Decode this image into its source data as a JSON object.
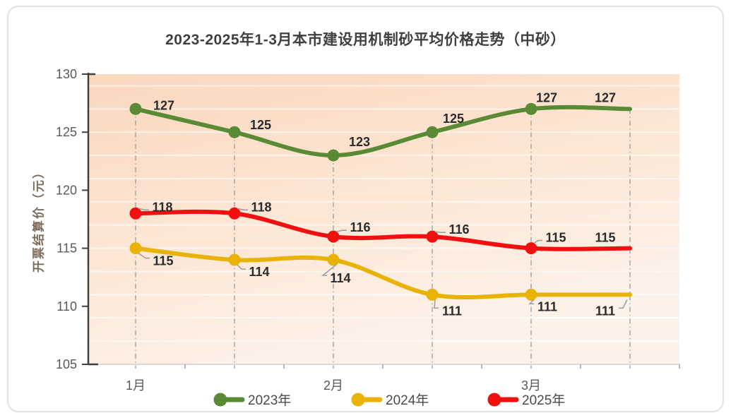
{
  "chart_data": {
    "type": "line",
    "title": "2023-2025年1-3月本市建设用机制砂平均价格走势（中砂）",
    "xlabel": "",
    "ylabel": "开票结算价（元）",
    "ylim": [
      105,
      130
    ],
    "yticks": [
      105,
      110,
      115,
      120,
      125,
      130
    ],
    "x": [
      1,
      1.5,
      2,
      2.5,
      3,
      3.5
    ],
    "xtick_labels": [
      "1月",
      "2月",
      "3月"
    ],
    "xtick_point_indices": [
      0,
      2,
      4
    ],
    "grid": "subtle horizontal minor gridlines every 2 units; gray dash-dot vertical droplines at each data point",
    "legend_position": "bottom",
    "series": [
      {
        "name": "2023年",
        "color": "#5a8a34",
        "values": [
          127,
          125,
          123,
          125,
          127,
          127
        ]
      },
      {
        "name": "2024年",
        "color": "#e9b306",
        "values": [
          115,
          114,
          114,
          111,
          111,
          111
        ]
      },
      {
        "name": "2025年",
        "color": "#f01010",
        "values": [
          118,
          118,
          116,
          116,
          115,
          115
        ]
      }
    ]
  },
  "colors": {
    "card_border": "#e2e2e2",
    "title_text": "#404040",
    "ylabel_text": "#7c6a58",
    "tick_text": "#595959",
    "axis_line": "#404040",
    "bottom_axis_line": "#cfcfcf",
    "dropline": "#9f9f9f",
    "minor_gridline": "rgba(255,255,255,0.6)",
    "data_label_text": "#2b2b2b",
    "leader_line": "#a0a0a0",
    "legend_text": "#4a4a4a",
    "plot_bg_top": "#fad7bd",
    "plot_bg_mid": "#fce7d6",
    "plot_bg_bottom": "#fdf2ea"
  }
}
